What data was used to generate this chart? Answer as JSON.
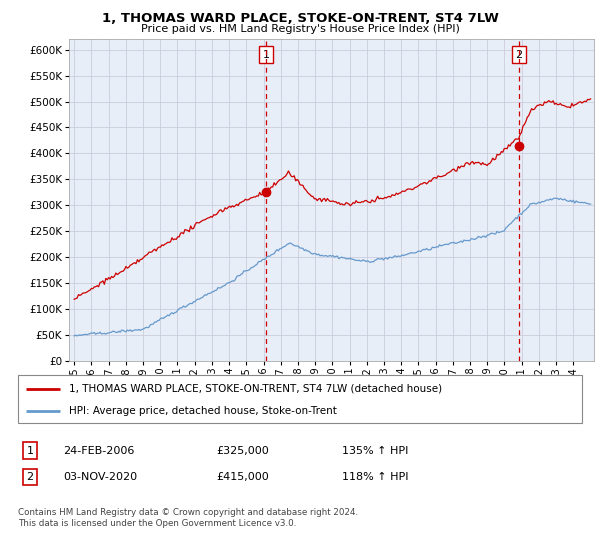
{
  "title": "1, THOMAS WARD PLACE, STOKE-ON-TRENT, ST4 7LW",
  "subtitle": "Price paid vs. HM Land Registry's House Price Index (HPI)",
  "legend_line1": "1, THOMAS WARD PLACE, STOKE-ON-TRENT, ST4 7LW (detached house)",
  "legend_line2": "HPI: Average price, detached house, Stoke-on-Trent",
  "footnote": "Contains HM Land Registry data © Crown copyright and database right 2024.\nThis data is licensed under the Open Government Licence v3.0.",
  "sale1_date": "24-FEB-2006",
  "sale1_price": "£325,000",
  "sale1_hpi": "135% ↑ HPI",
  "sale2_date": "03-NOV-2020",
  "sale2_price": "£415,000",
  "sale2_hpi": "118% ↑ HPI",
  "sale1_x": 2006.15,
  "sale1_y": 325000,
  "sale2_x": 2020.84,
  "sale2_y": 415000,
  "ylim": [
    0,
    620000
  ],
  "xlim_start": 1994.7,
  "xlim_end": 2025.2,
  "yticks": [
    0,
    50000,
    100000,
    150000,
    200000,
    250000,
    300000,
    350000,
    400000,
    450000,
    500000,
    550000,
    600000
  ],
  "xticks": [
    1995,
    1996,
    1997,
    1998,
    1999,
    2000,
    2001,
    2002,
    2003,
    2004,
    2005,
    2006,
    2007,
    2008,
    2009,
    2010,
    2011,
    2012,
    2013,
    2014,
    2015,
    2016,
    2017,
    2018,
    2019,
    2020,
    2021,
    2022,
    2023,
    2024
  ],
  "red_color": "#cc0000",
  "blue_color": "#6699cc",
  "vline_color": "#cc0000",
  "grid_color": "#ccccdd",
  "plot_bg_color": "#e8eef8",
  "bg_color": "#ffffff"
}
